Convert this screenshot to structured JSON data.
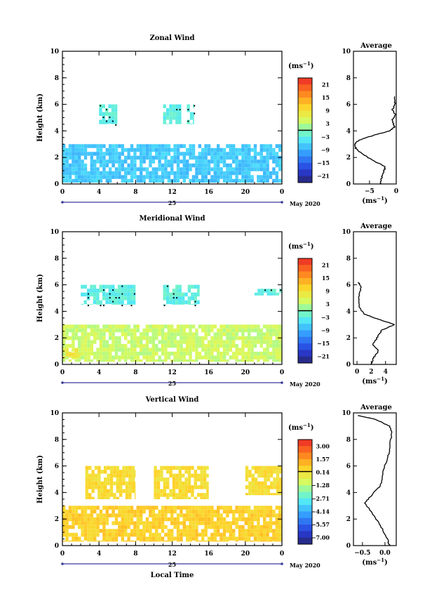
{
  "page": {
    "background": "#ffffff"
  },
  "chart_data": [
    {
      "id": "zonal",
      "type": "heatmap",
      "title": "Zonal Wind",
      "ylabel": "Height (km)",
      "xlim": [
        0,
        24
      ],
      "ylim": [
        0,
        10
      ],
      "x_ticks": [
        "0",
        "4",
        "8",
        "12",
        "16",
        "20",
        "0"
      ],
      "y_ticks": [
        "0",
        "2",
        "4",
        "6",
        "8",
        "10"
      ],
      "date_label": "25",
      "month_label": "May 2020",
      "unit_label": "(ms",
      "unit_exponent": "−1",
      "colorbar_ticks": [
        "21",
        "15",
        "9",
        "3",
        "−3",
        "−9",
        "−15",
        "−21"
      ],
      "colorbar_range": [
        -24,
        24
      ],
      "zero_line": 0,
      "blocks": [
        {
          "x0": 0,
          "x1": 24,
          "y0": 0.1,
          "y1": 3.0,
          "value": -7
        },
        {
          "x0": 4,
          "x1": 6,
          "y0": 4.5,
          "y1": 6.0,
          "value": -3
        },
        {
          "x0": 11,
          "x1": 13,
          "y0": 4.5,
          "y1": 6.0,
          "value": -3
        },
        {
          "x0": 13.6,
          "x1": 14.4,
          "y0": 4.5,
          "y1": 6.0,
          "value": -3
        }
      ],
      "avg_profile": {
        "title": "Average",
        "xlim": [
          -8,
          0
        ],
        "x_ticks": [
          "−5",
          "0"
        ],
        "x_tick_values": [
          -5,
          0
        ],
        "xlabel": "(ms",
        "x_exponent": "−1",
        "points": [
          [
            -3,
            0.0
          ],
          [
            -2.7,
            0.5
          ],
          [
            -2.3,
            1.0
          ],
          [
            -2.0,
            1.3
          ],
          [
            -4.5,
            1.8
          ],
          [
            -6.5,
            2.3
          ],
          [
            -7.6,
            2.7
          ],
          [
            -7.8,
            3.0
          ],
          [
            -7.0,
            3.3
          ],
          [
            -4.0,
            3.7
          ],
          [
            -1.2,
            4.0
          ],
          [
            -0.3,
            4.3
          ],
          [
            -0.8,
            4.8
          ],
          [
            -0.1,
            5.2
          ],
          [
            -0.7,
            5.6
          ],
          [
            -0.2,
            6.0
          ],
          [
            -0.3,
            6.6
          ]
        ]
      }
    },
    {
      "id": "meridional",
      "type": "heatmap",
      "title": "Meridional Wind",
      "ylabel": "Height (km)",
      "xlim": [
        0,
        24
      ],
      "ylim": [
        0,
        10
      ],
      "x_ticks": [
        "0",
        "4",
        "8",
        "12",
        "16",
        "20",
        "0"
      ],
      "y_ticks": [
        "0",
        "2",
        "4",
        "6",
        "8",
        "10"
      ],
      "date_label": "25",
      "month_label": "May 2020",
      "unit_label": "(ms",
      "unit_exponent": "−1",
      "colorbar_ticks": [
        "21",
        "15",
        "9",
        "3",
        "−3",
        "−9",
        "−15",
        "−21"
      ],
      "colorbar_range": [
        -24,
        24
      ],
      "zero_line": 0,
      "blocks": [
        {
          "x0": 0,
          "x1": 24,
          "y0": 0.2,
          "y1": 3.0,
          "value": 4
        },
        {
          "x0": 0,
          "x1": 2,
          "y0": 0.5,
          "y1": 1.2,
          "value": 8
        },
        {
          "x0": 2,
          "x1": 8,
          "y0": 4.5,
          "y1": 6.0,
          "value": -3
        },
        {
          "x0": 11,
          "x1": 15,
          "y0": 4.5,
          "y1": 6.0,
          "value": -3
        },
        {
          "x0": 21,
          "x1": 24,
          "y0": 5.2,
          "y1": 5.7,
          "value": -3
        }
      ],
      "avg_profile": {
        "title": "Average",
        "xlim": [
          -0.5,
          5.5
        ],
        "x_ticks": [
          "0",
          "2",
          "4"
        ],
        "x_tick_values": [
          0,
          2,
          4
        ],
        "xlabel": "(ms",
        "x_exponent": "−1",
        "points": [
          [
            2.0,
            0.0
          ],
          [
            2.3,
            0.5
          ],
          [
            3.0,
            1.0
          ],
          [
            2.2,
            1.5
          ],
          [
            2.8,
            2.0
          ],
          [
            3.5,
            2.6
          ],
          [
            5.3,
            3.0
          ],
          [
            3.0,
            3.4
          ],
          [
            1.0,
            3.8
          ],
          [
            0.3,
            4.3
          ],
          [
            0.2,
            5.0
          ],
          [
            0.6,
            5.8
          ],
          [
            0.2,
            6.2
          ]
        ]
      }
    },
    {
      "id": "vertical",
      "type": "heatmap",
      "title": "Vertical Wind",
      "ylabel": "Height (km)",
      "xlabel": "Local Time",
      "xlim": [
        0,
        24
      ],
      "ylim": [
        0,
        10
      ],
      "x_ticks": [
        "0",
        "4",
        "8",
        "12",
        "16",
        "20",
        "0"
      ],
      "y_ticks": [
        "0",
        "2",
        "4",
        "6",
        "8",
        "10"
      ],
      "date_label": "25",
      "month_label": "May 2020",
      "unit_label": "(ms",
      "unit_exponent": "−1",
      "colorbar_ticks": [
        "3.00",
        "1.57",
        "0.14",
        "−1.28",
        "−2.71",
        "−4.14",
        "−5.57",
        "−7.00"
      ],
      "colorbar_range": [
        -7.5,
        3.5
      ],
      "zero_line": 0.14,
      "blocks": [
        {
          "x0": 0,
          "x1": 24,
          "y0": 0.3,
          "y1": 3.0,
          "value": 0.5
        },
        {
          "x0": 2.5,
          "x1": 8,
          "y0": 3.5,
          "y1": 6.0,
          "value": 0.2
        },
        {
          "x0": 10,
          "x1": 16,
          "y0": 3.5,
          "y1": 6.0,
          "value": 0.2
        },
        {
          "x0": 20,
          "x1": 24,
          "y0": 3.8,
          "y1": 6.0,
          "value": 0.2
        }
      ],
      "avg_profile": {
        "title": "Average",
        "xlim": [
          -0.7,
          0.25
        ],
        "x_ticks": [
          "−0.5",
          "0.0"
        ],
        "x_tick_values": [
          -0.5,
          0.0
        ],
        "xlabel": "(ms",
        "x_exponent": "−1",
        "points": [
          [
            0.1,
            0.0
          ],
          [
            0.05,
            0.5
          ],
          [
            -0.1,
            1.5
          ],
          [
            -0.3,
            2.5
          ],
          [
            -0.45,
            3.2
          ],
          [
            -0.3,
            3.8
          ],
          [
            -0.1,
            4.5
          ],
          [
            -0.05,
            5.5
          ],
          [
            0.05,
            6.5
          ],
          [
            0.1,
            7.2
          ],
          [
            0.15,
            8.5
          ],
          [
            0.1,
            9.0
          ],
          [
            -0.2,
            9.5
          ],
          [
            -0.6,
            9.8
          ]
        ]
      }
    }
  ]
}
